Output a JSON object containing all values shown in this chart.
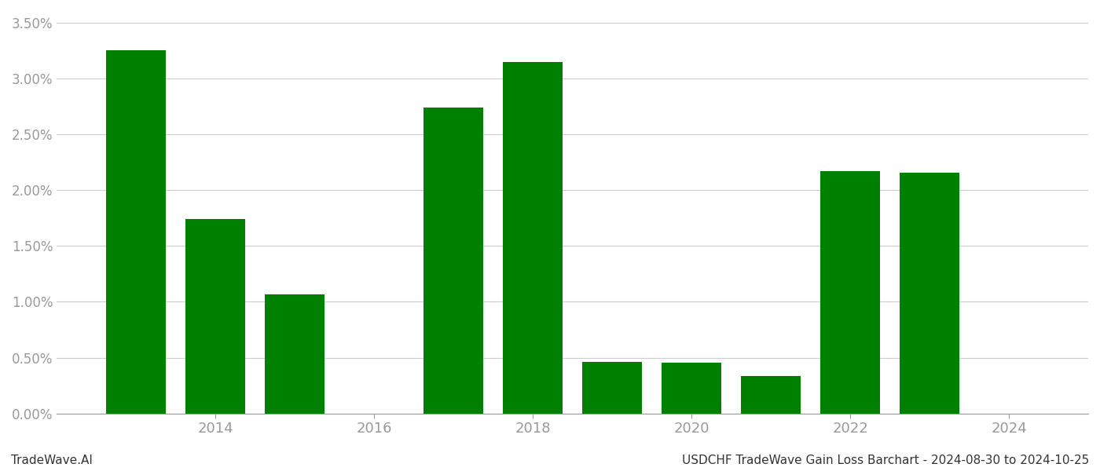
{
  "years": [
    2013,
    2014,
    2015,
    2017,
    2018,
    2019,
    2020,
    2021,
    2022,
    2023
  ],
  "values": [
    0.03255,
    0.0174,
    0.0107,
    0.0274,
    0.0315,
    0.00465,
    0.00455,
    0.00335,
    0.0217,
    0.02155
  ],
  "bar_color": "#008000",
  "background_color": "#ffffff",
  "grid_color": "#cccccc",
  "tick_color": "#999999",
  "xtick_positions": [
    2014,
    2016,
    2018,
    2020,
    2022,
    2024
  ],
  "xtick_labels": [
    "2014",
    "2016",
    "2018",
    "2020",
    "2022",
    "2024"
  ],
  "ylim_max": 0.036,
  "footer_left": "TradeWave.AI",
  "footer_right": "USDCHF TradeWave Gain Loss Barchart - 2024-08-30 to 2024-10-25",
  "bar_width": 0.75,
  "xlim_min": 2012.0,
  "xlim_max": 2025.0
}
